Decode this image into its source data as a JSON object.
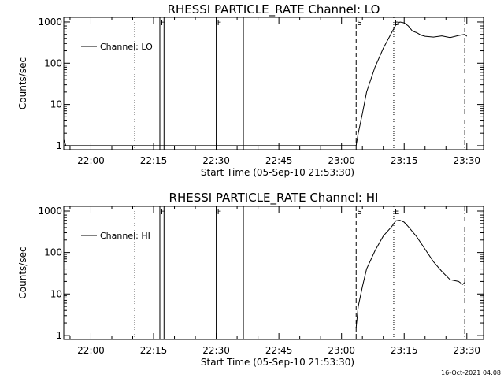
{
  "timestamp": "16-Oct-2021 04:08",
  "chart_data": [
    {
      "type": "line",
      "title": "RHESSI PARTICLE_RATE Channel: LO",
      "xlabel": "Start Time (05-Sep-10 21:53:30)",
      "ylabel": "Counts/sec",
      "yscale": "log",
      "ylim": [
        0.8,
        1300
      ],
      "xlim": [
        "21:53:30",
        "23:34:00"
      ],
      "x_ticks": [
        "22:00",
        "22:15",
        "22:30",
        "22:45",
        "23:00",
        "23:15",
        "23:30"
      ],
      "y_ticks": [
        "1",
        "10",
        "100",
        "1000"
      ],
      "legend": {
        "label": "Channel: LO",
        "placement": "top-left"
      },
      "series": [
        {
          "name": "Channel: LO",
          "x": [
            "21:53:30",
            "21:54:00",
            "23:03:30",
            "23:04:00",
            "23:05:00",
            "23:06:00",
            "23:08:00",
            "23:10:00",
            "23:12:00",
            "23:13:00",
            "23:14:00",
            "23:15:00",
            "23:16:00",
            "23:17:00",
            "23:18:00",
            "23:19:00",
            "23:20:00",
            "23:22:00",
            "23:24:00",
            "23:26:00",
            "23:28:00",
            "23:29:30",
            "23:30:00"
          ],
          "y": [
            1.4,
            1,
            1,
            2,
            6,
            20,
            80,
            230,
            550,
            850,
            1000,
            950,
            800,
            600,
            550,
            480,
            450,
            430,
            460,
            420,
            470,
            500,
            450
          ]
        }
      ],
      "markers": [
        {
          "x": "22:10:30",
          "label": "",
          "style": "dotted"
        },
        {
          "x": "22:16:30",
          "label": "F",
          "style": "solid"
        },
        {
          "x": "22:17:30",
          "label": "",
          "style": "solid"
        },
        {
          "x": "22:30:00",
          "label": "F",
          "style": "solid"
        },
        {
          "x": "22:36:30",
          "label": "",
          "style": "solid"
        },
        {
          "x": "23:03:30",
          "label": "S",
          "style": "dashed"
        },
        {
          "x": "23:12:30",
          "label": "E",
          "style": "dotted"
        },
        {
          "x": "23:29:30",
          "label": "",
          "style": "dashdot"
        }
      ]
    },
    {
      "type": "line",
      "title": "RHESSI PARTICLE_RATE Channel: HI",
      "xlabel": "Start Time (05-Sep-10 21:53:30)",
      "ylabel": "Counts/sec",
      "yscale": "log",
      "ylim": [
        0.8,
        1300
      ],
      "xlim": [
        "21:53:30",
        "23:34:00"
      ],
      "x_ticks": [
        "22:00",
        "22:15",
        "22:30",
        "22:45",
        "23:00",
        "23:15",
        "23:30"
      ],
      "y_ticks": [
        "1",
        "10",
        "100",
        "1000"
      ],
      "legend": {
        "label": "Channel: HI",
        "placement": "top-left"
      },
      "series": [
        {
          "name": "Channel: HI",
          "x": [
            "23:03:30",
            "23:04:00",
            "23:05:00",
            "23:06:00",
            "23:08:00",
            "23:10:00",
            "23:12:00",
            "23:13:00",
            "23:14:00",
            "23:15:00",
            "23:16:00",
            "23:18:00",
            "23:20:00",
            "23:22:00",
            "23:24:00",
            "23:26:00",
            "23:28:00",
            "23:29:00",
            "23:29:30"
          ],
          "y": [
            1.5,
            5,
            15,
            40,
            110,
            250,
            420,
            580,
            600,
            540,
            420,
            240,
            120,
            60,
            35,
            22,
            20,
            17,
            19
          ]
        }
      ],
      "markers": [
        {
          "x": "22:10:30",
          "label": "",
          "style": "dotted"
        },
        {
          "x": "22:16:30",
          "label": "F",
          "style": "solid"
        },
        {
          "x": "22:17:30",
          "label": "",
          "style": "solid"
        },
        {
          "x": "22:30:00",
          "label": "F",
          "style": "solid"
        },
        {
          "x": "22:36:30",
          "label": "",
          "style": "solid"
        },
        {
          "x": "23:03:30",
          "label": "S",
          "style": "dashed"
        },
        {
          "x": "23:12:30",
          "label": "E",
          "style": "dotted"
        },
        {
          "x": "23:29:30",
          "label": "",
          "style": "dashdot"
        }
      ]
    }
  ]
}
